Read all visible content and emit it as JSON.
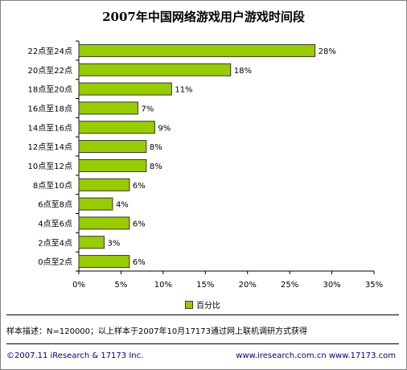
{
  "chart_data": {
    "type": "bar",
    "orientation": "horizontal",
    "title": "2007年中国网络游戏用户游戏时间段",
    "categories": [
      "22点至24点",
      "20点至22点",
      "18点至20点",
      "16点至18点",
      "14点至16点",
      "12点至14点",
      "10点至12点",
      "8点至10点",
      "6点至8点",
      "4点至6点",
      "2点至4点",
      "0点至2点"
    ],
    "series": [
      {
        "name": "百分比",
        "values": [
          28,
          18,
          11,
          7,
          9,
          8,
          8,
          6,
          4,
          6,
          3,
          6
        ]
      }
    ],
    "value_labels": [
      "28%",
      "18%",
      "11%",
      "7%",
      "9%",
      "8%",
      "8%",
      "6%",
      "4%",
      "6%",
      "3%",
      "6%"
    ],
    "xlim": [
      0,
      35
    ],
    "x_ticks": [
      "0%",
      "5%",
      "10%",
      "15%",
      "20%",
      "25%",
      "30%",
      "35%"
    ],
    "grid": false,
    "legend_position": "bottom",
    "bar_color": "#99cc00"
  },
  "sample_note": "样本描述：N=120000；以上样本于2007年10月17173通过网上联机调研方式获得",
  "footer": {
    "copyright": "©2007.11 iResearch & 17173 Inc.",
    "websites": "www.iresearch.com.cn  www.17173.com"
  }
}
